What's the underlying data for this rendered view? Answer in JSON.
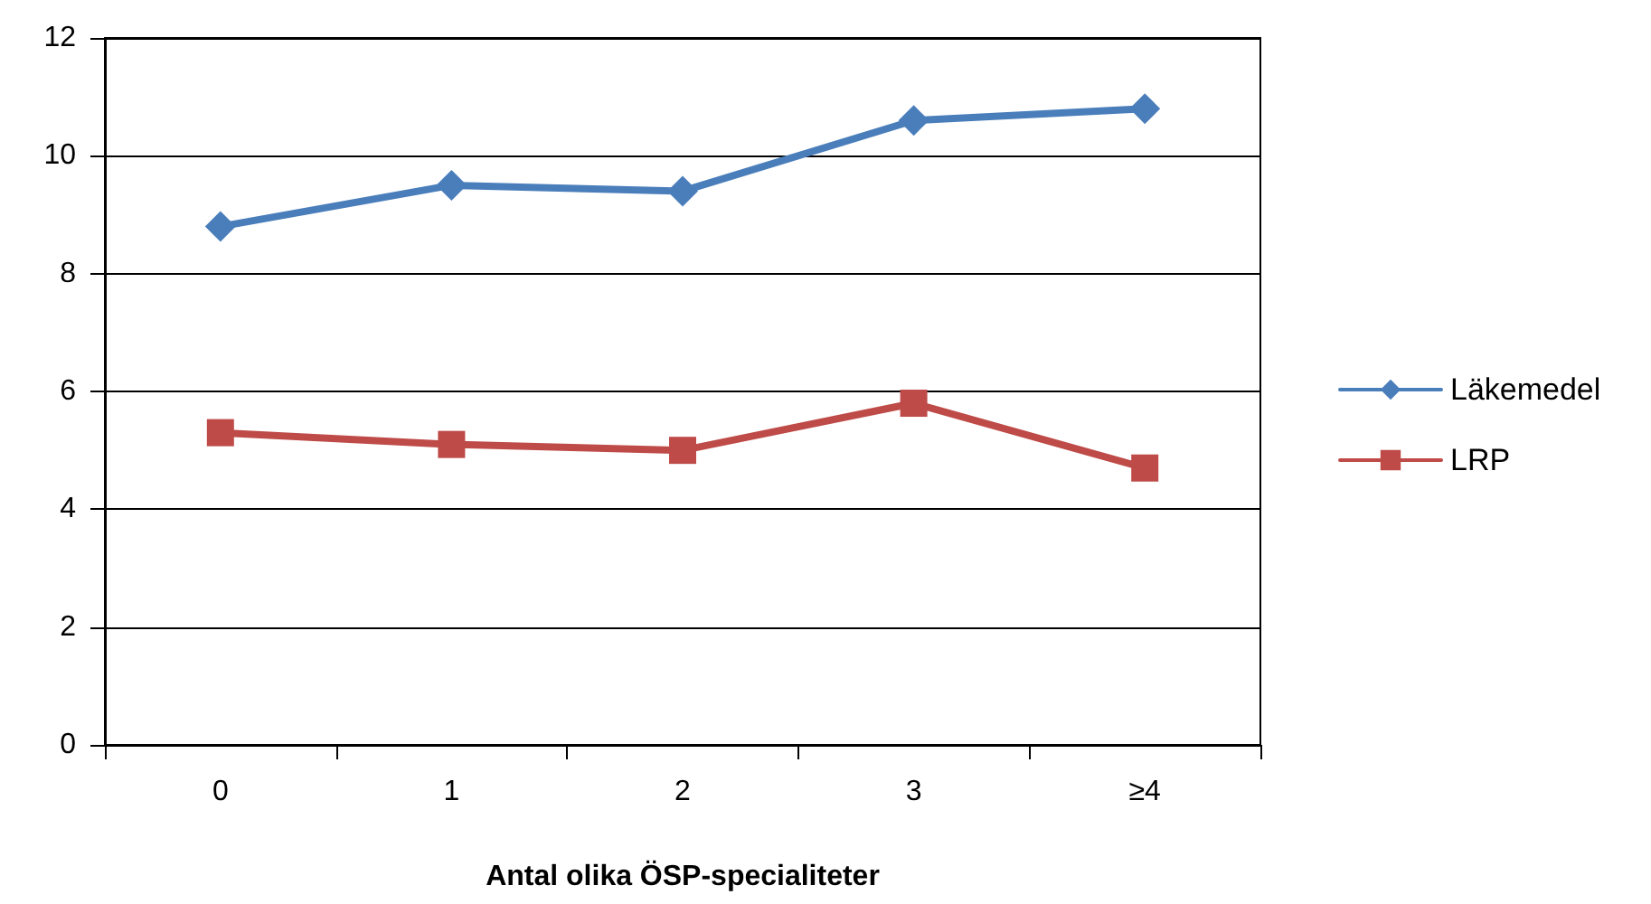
{
  "chart_data": {
    "type": "line",
    "xlabel": "Antal olika ÖSP-specialiteter",
    "categories": [
      "0",
      "1",
      "2",
      "3",
      "≥4"
    ],
    "series": [
      {
        "name": "Läkemedel",
        "color": "#4a7ebb",
        "marker": "diamond",
        "values": [
          8.8,
          9.5,
          9.4,
          10.6,
          10.8
        ]
      },
      {
        "name": "LRP",
        "color": "#be4b48",
        "marker": "square",
        "values": [
          5.3,
          5.1,
          5.0,
          5.8,
          4.7
        ]
      }
    ],
    "ylim": [
      0,
      12
    ],
    "yticks": [
      0,
      2,
      4,
      6,
      8,
      10,
      12
    ],
    "grid": "y",
    "legend": "right",
    "line_style": "solid"
  }
}
